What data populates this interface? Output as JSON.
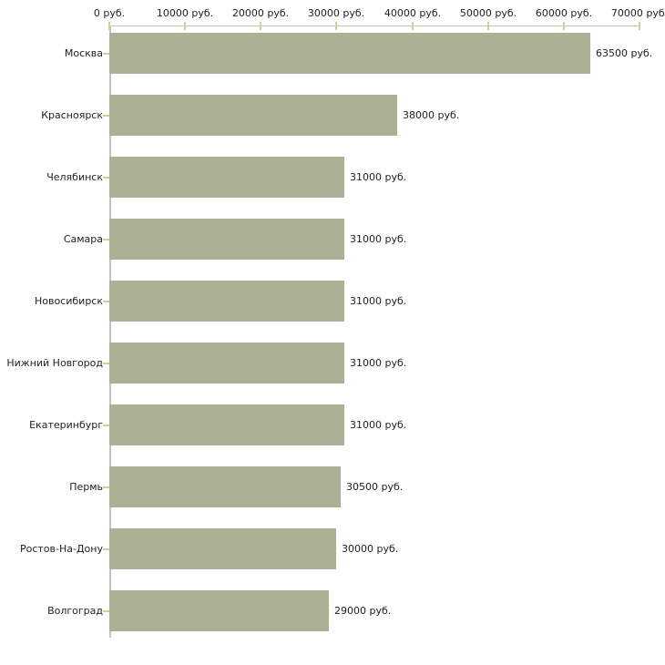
{
  "chart_data": {
    "type": "bar",
    "orientation": "horizontal",
    "title": "",
    "xlabel": "",
    "ylabel": "",
    "xlim": [
      0,
      70000
    ],
    "x_tick_step": 10000,
    "x_tick_labels": [
      "0 руб.",
      "10000 руб.",
      "20000 руб.",
      "30000 руб.",
      "40000 руб.",
      "50000 руб.",
      "60000 руб.",
      "70000 руб."
    ],
    "categories": [
      "Москва",
      "Красноярск",
      "Челябинск",
      "Самара",
      "Новосибирск",
      "Нижний Новгород",
      "Екатеринбург",
      "Пермь",
      "Ростов-На-Дону",
      "Волгоград"
    ],
    "values": [
      63500,
      38000,
      31000,
      31000,
      31000,
      31000,
      31000,
      30500,
      30000,
      29000
    ],
    "value_labels": [
      "63500 руб.",
      "38000 руб.",
      "31000 руб.",
      "31000 руб.",
      "31000 руб.",
      "31000 руб.",
      "31000 руб.",
      "30500 руб.",
      "30000 руб.",
      "29000 руб."
    ],
    "grid": false,
    "legend": false,
    "colors": {
      "bar": "#ACB196",
      "axis_line": "#C3C3C3",
      "tick_mark": "#CFCFA6",
      "text": "#222222",
      "background": "#FFFFFF"
    }
  }
}
